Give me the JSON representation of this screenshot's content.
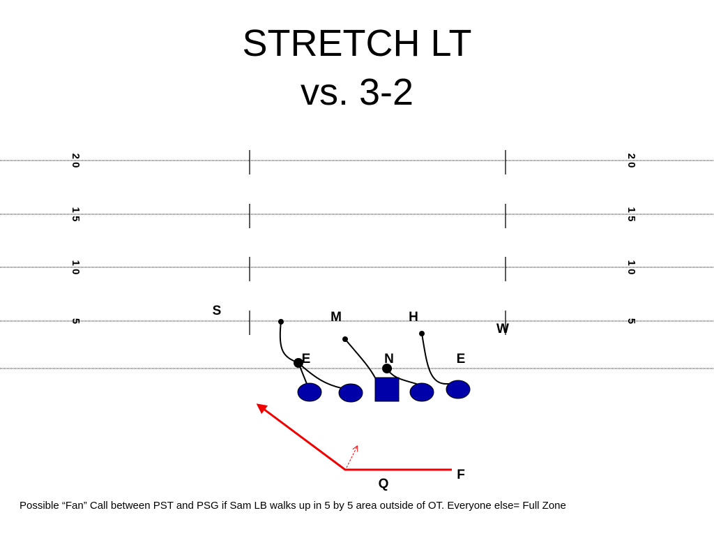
{
  "title": [
    "STRETCH LT",
    "vs. 3-2"
  ],
  "yard_numbers": [
    "2 0",
    "1 5",
    "1 0",
    "5"
  ],
  "players": [
    "S",
    "M",
    "H",
    "W",
    "E",
    "N",
    "E",
    "F",
    "Q"
  ],
  "footnote": "Possible “Fan” Call between PST and PSG if Sam LB walks up in 5 by 5 area outside of OT.  Everyone else= Full Zone"
}
